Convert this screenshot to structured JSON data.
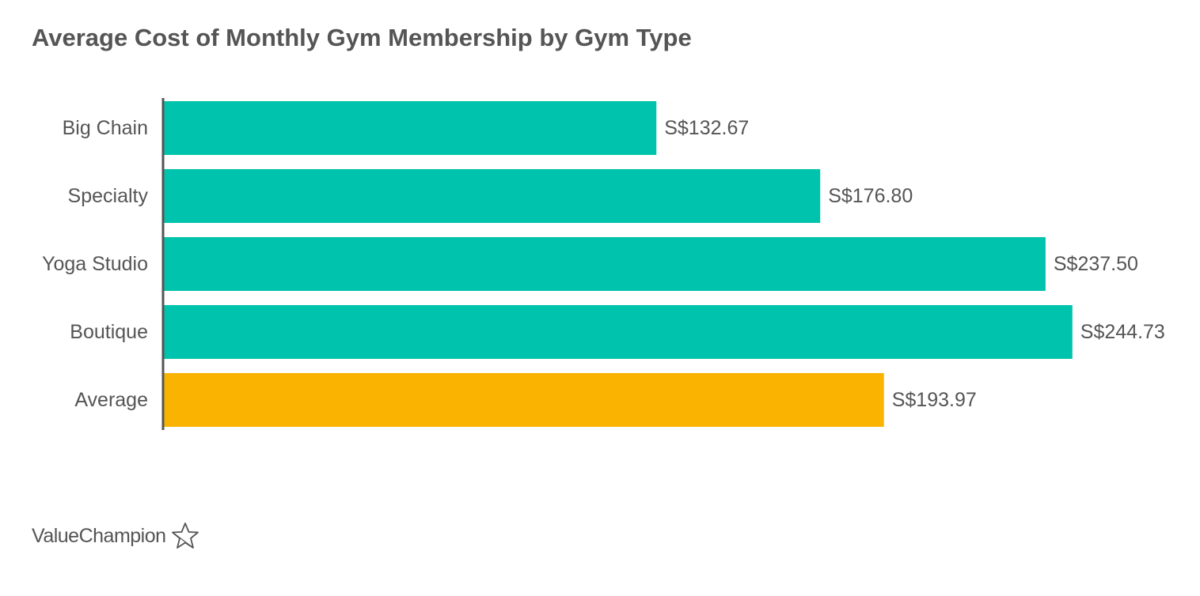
{
  "chart_data": {
    "type": "bar",
    "orientation": "horizontal",
    "title": "Average Cost of Monthly Gym Membership by Gym Type",
    "xlabel": "",
    "ylabel": "",
    "categories": [
      "Big Chain",
      "Specialty",
      "Yoga Studio",
      "Boutique",
      "Average"
    ],
    "values": [
      132.67,
      176.8,
      237.5,
      244.73,
      193.97
    ],
    "value_labels": [
      "S$132.67",
      "S$176.80",
      "S$237.50",
      "S$244.73",
      "S$193.97"
    ],
    "colors": [
      "#00C3AD",
      "#00C3AD",
      "#00C3AD",
      "#00C3AD",
      "#F9B300"
    ],
    "xlim": [
      0,
      250
    ],
    "grid": false,
    "legend": "none"
  },
  "branding": {
    "logo_text": "ValueChampion",
    "logo_icon": "star-outline-icon"
  }
}
